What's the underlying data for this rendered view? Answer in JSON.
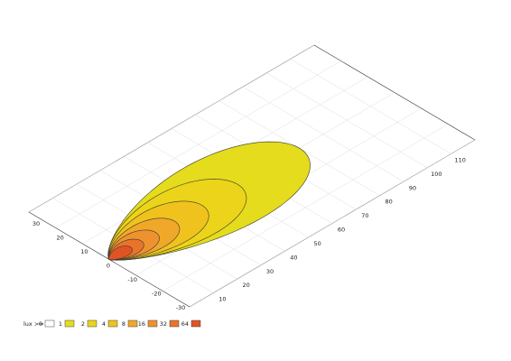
{
  "chart_data": {
    "type": "contour",
    "legend_title": "lux >=",
    "levels": [
      0,
      1,
      2,
      4,
      8,
      16,
      32,
      64
    ],
    "colors": [
      "#ffffff",
      "#e4dc1c",
      "#ecd41a",
      "#f0c21e",
      "#f0a82a",
      "#ee9230",
      "#e8742a",
      "#e05424"
    ],
    "reach": [
      null,
      80,
      54,
      39,
      27.5,
      19.5,
      13.4,
      8.9
    ],
    "half_width": [
      null,
      16,
      12,
      9,
      6.5,
      4.8,
      3.4,
      2.3
    ],
    "xlim": [
      0,
      120
    ],
    "xticks": [
      10,
      20,
      30,
      40,
      50,
      60,
      70,
      80,
      90,
      100,
      110
    ],
    "ylim": [
      -30,
      30
    ],
    "yticks": [
      30,
      20,
      10,
      0,
      -10,
      -20,
      -30
    ],
    "grid": true
  }
}
